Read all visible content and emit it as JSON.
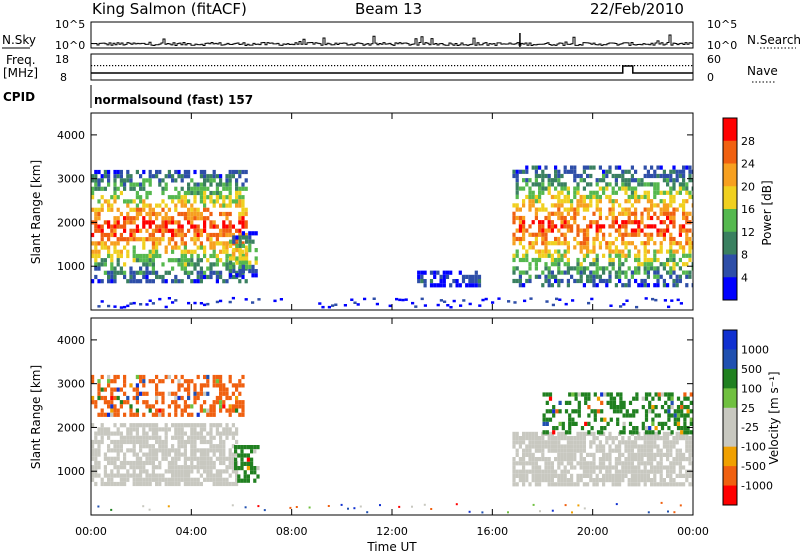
{
  "header": {
    "station": "King Salmon (fitACF)",
    "beam": "Beam 13",
    "date": "22/Feb/2010"
  },
  "top_strips": {
    "nsky_label": "N.Sky",
    "nsky_ticks": [
      "10^5",
      "10^0"
    ],
    "nsearch_label": "N.Search",
    "nsearch_ticks": [
      "10^5",
      "10^0"
    ],
    "freq_label": "Freq.",
    "freq_unit": "[MHz]",
    "freq_ticks": [
      "18",
      "8"
    ],
    "nave_label": "Nave",
    "nave_ticks": [
      "60",
      "0"
    ],
    "cpid_label": "CPID",
    "cpid_value": "normalsound (fast) 157"
  },
  "chart_data": [
    {
      "type": "heatmap",
      "ylabel": "Slant Range [km]",
      "ylim": [
        0,
        4500
      ],
      "y_ticks": [
        "1000",
        "2000",
        "3000",
        "4000"
      ],
      "xlim_hours": [
        0,
        24
      ],
      "x_ticks": [
        "00:00",
        "04:00",
        "08:00",
        "12:00",
        "16:00",
        "20:00",
        "00:00"
      ],
      "colorbar": {
        "label": "Power [dB]",
        "ticks": [
          "4",
          "8",
          "12",
          "16",
          "20",
          "24",
          "28"
        ],
        "colors": [
          "#0000ff",
          "#2e4ea8",
          "#3a8060",
          "#55b84e",
          "#f0d020",
          "#f7a020",
          "#f06010",
          "#ff0000"
        ]
      },
      "echo_regions": [
        {
          "t_start": 0.0,
          "t_end": 6.2,
          "range_min": 700,
          "range_max": 3200,
          "peak_db": 28
        },
        {
          "t_start": 5.5,
          "t_end": 6.6,
          "range_min": 800,
          "range_max": 1800,
          "peak_db": 20
        },
        {
          "t_start": 13.0,
          "t_end": 15.5,
          "range_min": 600,
          "range_max": 900,
          "peak_db": 8
        },
        {
          "t_start": 16.8,
          "t_end": 24.0,
          "range_min": 600,
          "range_max": 3300,
          "peak_db": 28
        }
      ]
    },
    {
      "type": "heatmap",
      "ylabel": "Slant Range [km]",
      "ylim": [
        0,
        4500
      ],
      "y_ticks": [
        "1000",
        "2000",
        "3000",
        "4000"
      ],
      "xlim_hours": [
        0,
        24
      ],
      "x_ticks": [
        "00:00",
        "04:00",
        "08:00",
        "12:00",
        "16:00",
        "20:00",
        "00:00"
      ],
      "xlabel": "Time UT",
      "colorbar": {
        "label_main": "Velocity",
        "label_unit": "[m s⁻¹]",
        "ticks": [
          "1000",
          "500",
          "100",
          "25",
          "-25",
          "-100",
          "-500",
          "-1000"
        ],
        "colors": [
          "#1030d0",
          "#2050b0",
          "#208020",
          "#70c040",
          "#c8c8c0",
          "#c8c8c0",
          "#f0a000",
          "#f06010",
          "#ff0000"
        ]
      },
      "echo_regions": [
        {
          "t_start": 0.0,
          "t_end": 5.8,
          "range_min": 700,
          "range_max": 2100,
          "velocity": "ground scatter"
        },
        {
          "t_start": 0.0,
          "t_end": 6.0,
          "range_min": 2300,
          "range_max": 3200,
          "velocity": -500
        },
        {
          "t_start": 5.7,
          "t_end": 6.6,
          "range_min": 800,
          "range_max": 1600,
          "velocity": 100
        },
        {
          "t_start": 16.8,
          "t_end": 24.0,
          "range_min": 700,
          "range_max": 1900,
          "velocity": "ground scatter"
        },
        {
          "t_start": 18.0,
          "t_end": 24.0,
          "range_min": 1900,
          "range_max": 2800,
          "velocity": 100
        }
      ]
    }
  ]
}
